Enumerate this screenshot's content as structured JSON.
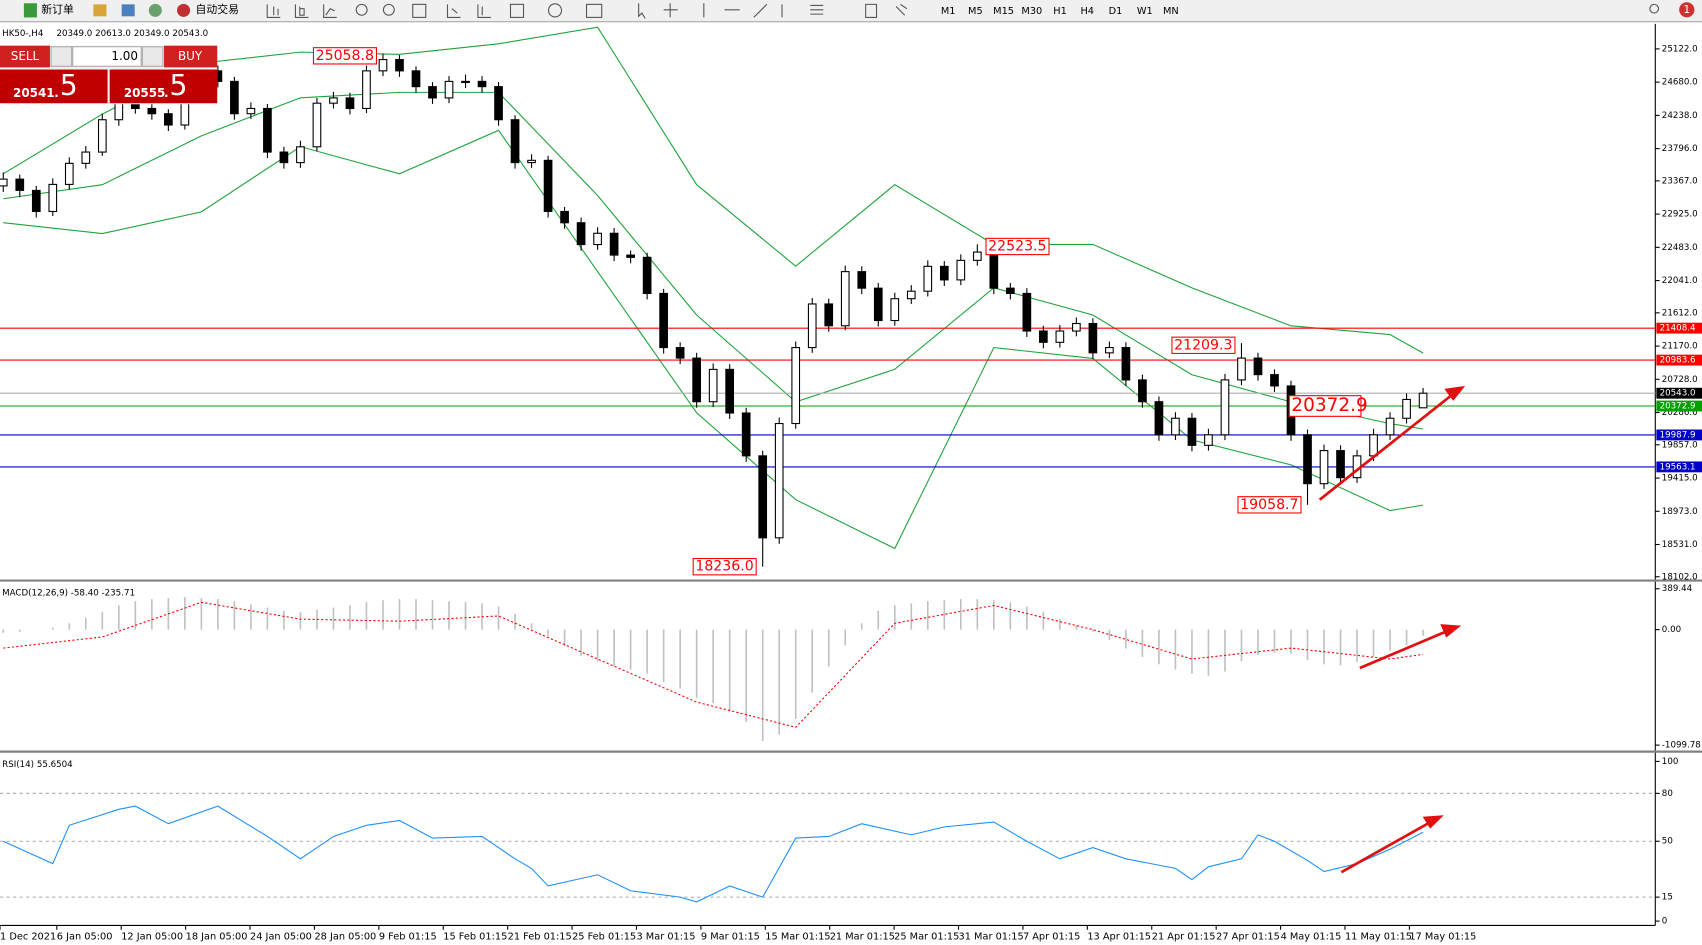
{
  "toolbar": {
    "new_order": "新订单",
    "auto_trading": "自动交易",
    "timeframes": [
      "M1",
      "M5",
      "M15",
      "M30",
      "H1",
      "H4",
      "D1",
      "W1",
      "MN"
    ],
    "alerts": "1"
  },
  "trade_panel": {
    "sell": "SELL",
    "buy": "BUY",
    "lots": "1.00",
    "sell_price": "20541",
    "sell_point": ".",
    "sell_digit": "5",
    "buy_price": "20555",
    "buy_point": ".",
    "buy_digit": "5"
  },
  "time_axis": [
    "1 Dec 2021",
    "6 Jan 05:00",
    "12 Jan 05:00",
    "18 Jan 05:00",
    "24 Jan 05:00",
    "28 Jan 05:00",
    "9 Feb 01:15",
    "15 Feb 01:15",
    "21 Feb 01:15",
    "25 Feb 01:15",
    "3 Mar 01:15",
    "9 Mar 01:15",
    "15 Mar 01:15",
    "21 Mar 01:15",
    "25 Mar 01:15",
    "31 Mar 01:15",
    "7 Apr 01:15",
    "13 Apr 01:15",
    "21 Apr 01:15",
    "27 Apr 01:15",
    "4 May 01:15",
    "11 May 01:15",
    "17 May 01:15"
  ],
  "chart_data": [
    {
      "type": "candlestick",
      "title": "HK50-,H4",
      "ohlc_label": "20349.0 20613.0 20349.0 20543.0",
      "open": [
        23300,
        23390,
        23240,
        22960,
        23320,
        23600,
        23750,
        24180,
        24400,
        24330,
        24260,
        24110,
        24690,
        24830,
        24690,
        24260,
        24330,
        23750,
        23610,
        23820,
        24400,
        24470,
        24330,
        24830,
        24980,
        24830,
        24620,
        24470,
        24690,
        24690,
        24620,
        24180,
        23610,
        23640,
        22960,
        22810,
        22520,
        22670,
        22380,
        22350,
        21870,
        21150,
        21010,
        20430,
        20860,
        20280,
        19710,
        18620,
        20140,
        21150,
        21730,
        21440,
        22160,
        21940,
        21510,
        21800,
        21900,
        22230,
        22050,
        22310,
        22420,
        21940,
        21870,
        21370,
        21220,
        21370,
        21470,
        21080,
        21150,
        20720,
        20430,
        19990,
        20210,
        19850,
        19990,
        20720,
        21010,
        20790,
        20640,
        19990,
        19340,
        19780,
        19420,
        19710,
        19990,
        20210,
        20349
      ],
      "high": [
        23480,
        23450,
        23300,
        23400,
        23680,
        23830,
        24260,
        24480,
        24470,
        24400,
        24320,
        24760,
        24900,
        24900,
        24750,
        24410,
        24390,
        23820,
        23900,
        24470,
        24550,
        24540,
        24900,
        25058.8,
        25040,
        24890,
        24680,
        24760,
        24780,
        24760,
        24680,
        24240,
        23720,
        23700,
        23020,
        22880,
        22750,
        22740,
        22440,
        22410,
        21930,
        21220,
        21080,
        20940,
        20930,
        20350,
        19780,
        20220,
        21230,
        21810,
        21800,
        22240,
        22230,
        22010,
        21880,
        21980,
        22310,
        22300,
        22390,
        22523.5,
        22490,
        22010,
        21940,
        21440,
        21450,
        21550,
        21540,
        21230,
        21220,
        20790,
        20500,
        20290,
        20280,
        20070,
        20800,
        21209.3,
        21080,
        20860,
        20710,
        20060,
        19860,
        19850,
        19790,
        20070,
        20290,
        20540,
        20613
      ],
      "low": [
        23220,
        23150,
        22880,
        22900,
        23250,
        23530,
        23700,
        24100,
        24260,
        24180,
        24030,
        24050,
        24620,
        24610,
        24180,
        24190,
        23670,
        23530,
        23540,
        23760,
        24330,
        24250,
        24270,
        24760,
        24750,
        24540,
        24390,
        24400,
        24600,
        24540,
        24100,
        23530,
        23540,
        22880,
        22730,
        22440,
        22450,
        22300,
        22270,
        21790,
        21070,
        20930,
        20350,
        20360,
        20200,
        19630,
        18236,
        18540,
        20070,
        21080,
        21360,
        21380,
        21860,
        21430,
        21440,
        21730,
        21830,
        21970,
        21980,
        22240,
        21860,
        21790,
        21290,
        21140,
        21150,
        21300,
        21000,
        21010,
        20640,
        20350,
        19910,
        19920,
        19770,
        19780,
        19920,
        20650,
        20710,
        20560,
        19910,
        19058.7,
        19270,
        19340,
        19350,
        19640,
        19920,
        20140,
        20349
      ],
      "close": [
        23390,
        23240,
        22960,
        23320,
        23600,
        23750,
        24180,
        24400,
        24330,
        24260,
        24110,
        24690,
        24830,
        24690,
        24260,
        24330,
        23750,
        23610,
        23820,
        24400,
        24470,
        24330,
        24830,
        24980,
        24830,
        24620,
        24470,
        24690,
        24690,
        24620,
        24180,
        23610,
        23640,
        22960,
        22810,
        22520,
        22670,
        22380,
        22350,
        21870,
        21150,
        21010,
        20430,
        20860,
        20280,
        19710,
        18620,
        20140,
        21150,
        21730,
        21440,
        22160,
        21940,
        21510,
        21800,
        21900,
        22230,
        22050,
        22310,
        22420,
        21940,
        21870,
        21370,
        21220,
        21370,
        21470,
        21080,
        21150,
        20720,
        20430,
        19990,
        20210,
        19850,
        19990,
        20720,
        21010,
        20790,
        20640,
        19990,
        19340,
        19780,
        19420,
        19710,
        19990,
        20210,
        20460,
        20543
      ],
      "ylim": [
        18102,
        25122
      ],
      "yticks": [
        {
          "value": 25122,
          "label": "25122.0"
        },
        {
          "value": 24680,
          "label": "24680.0"
        },
        {
          "value": 24238,
          "label": "24238.0"
        },
        {
          "value": 23796,
          "label": "23796.0"
        },
        {
          "value": 23367,
          "label": "23367.0"
        },
        {
          "value": 22925,
          "label": "22925.0"
        },
        {
          "value": 22483,
          "label": "22483.0"
        },
        {
          "value": 22041,
          "label": "22041.0"
        },
        {
          "value": 21612,
          "label": "21612.0"
        },
        {
          "value": 21170,
          "label": "21170.0"
        },
        {
          "value": 20728,
          "label": "20728.0"
        },
        {
          "value": 20286,
          "label": "20286.0"
        },
        {
          "value": 19857,
          "label": "19857.0"
        },
        {
          "value": 19415,
          "label": "19415.0"
        },
        {
          "value": 18973,
          "label": "18973.0"
        },
        {
          "value": 18531,
          "label": "18531.0"
        },
        {
          "value": 18102,
          "label": "18102.0"
        }
      ],
      "bands": {
        "color": "#1fa33a",
        "x": [
          0,
          6,
          12,
          18,
          24,
          30,
          36,
          42,
          48,
          54,
          60,
          66,
          72,
          78,
          84,
          86
        ],
        "upper": [
          23461,
          24255,
          24933,
          25079,
          25050,
          25190,
          25410,
          23316,
          22233,
          23316,
          22522,
          22522,
          21944,
          21439,
          21323,
          21078
        ],
        "middle": [
          23129,
          23316,
          23966,
          24472,
          24544,
          24544,
          23172,
          21583,
          20428,
          20861,
          21944,
          21583,
          20789,
          20428,
          20139,
          20067
        ],
        "lower": [
          22811,
          22666,
          22955,
          23822,
          23461,
          24039,
          22161,
          20283,
          19127,
          18478,
          21150,
          21006,
          19922,
          19590,
          18983,
          19055
        ]
      },
      "levels": [
        {
          "value": 21408.4,
          "label": "21408.4",
          "color": "#ff0000"
        },
        {
          "value": 20983.6,
          "label": "20983.6",
          "color": "#ff0000"
        },
        {
          "value": 20543,
          "label": "20543.0",
          "color": "#000000"
        },
        {
          "value": 20372.9,
          "label": "20372.9",
          "color": "#00a000"
        },
        {
          "value": 19987.9,
          "label": "19987.9",
          "color": "#0000c8"
        },
        {
          "value": 19563.1,
          "label": "19563.1",
          "color": "#0000c8"
        }
      ],
      "annotations": [
        {
          "value": 25058.8,
          "label": "25058.8"
        },
        {
          "value": 22523.5,
          "label": "22523.5"
        },
        {
          "value": 21209.3,
          "label": "21209.3"
        },
        {
          "value": 20372.9,
          "label": "20372.9"
        },
        {
          "value": 19058.7,
          "label": "19058.7"
        },
        {
          "value": 18236,
          "label": "18236.0"
        }
      ]
    },
    {
      "type": "macd",
      "title": "MACD(12,26,9) -58.40 -235.71",
      "color": "#c0c0c0",
      "histogram": [
        -30,
        -20,
        0,
        20,
        60,
        110,
        170,
        230,
        270,
        290,
        300,
        310,
        300,
        290,
        270,
        240,
        210,
        180,
        170,
        190,
        210,
        230,
        260,
        280,
        290,
        290,
        280,
        270,
        260,
        250,
        220,
        150,
        60,
        -60,
        -160,
        -250,
        -300,
        -350,
        -380,
        -420,
        -500,
        -560,
        -650,
        -700,
        -780,
        -880,
        -1060,
        -1000,
        -850,
        -600,
        -350,
        -150,
        60,
        180,
        230,
        250,
        270,
        280,
        290,
        290,
        280,
        260,
        220,
        170,
        100,
        40,
        -20,
        -100,
        -180,
        -260,
        -330,
        -380,
        -420,
        -440,
        -400,
        -300,
        -240,
        -220,
        -230,
        -290,
        -330,
        -340,
        -310,
        -260,
        -200,
        -150,
        -58.4
      ],
      "signal": {
        "color": "#ff0000",
        "x": [
          0,
          6,
          12,
          18,
          24,
          30,
          36,
          42,
          48,
          54,
          60,
          66,
          72,
          78,
          84,
          86
        ],
        "values": [
          -176,
          -70,
          260,
          100,
          80,
          130,
          -280,
          -690,
          -930,
          60,
          230,
          0,
          -280,
          -176,
          -280,
          -235.71
        ]
      },
      "ylim": [
        -1099.78,
        389.44
      ],
      "yticks": [
        389.44,
        {
          "value": 0,
          "label": "0.00"
        },
        -1099.78
      ]
    },
    {
      "type": "line",
      "title": "RSI(14) 55.6504",
      "color": "#1e90ff",
      "x": [
        0,
        3,
        4,
        7,
        8,
        10,
        13,
        16,
        18,
        20,
        22,
        24,
        26,
        29,
        31,
        32,
        33,
        36,
        38,
        41,
        42,
        44,
        46,
        48,
        50,
        52,
        55,
        57,
        60,
        62,
        64,
        66,
        68,
        71,
        72,
        73,
        75,
        76,
        77,
        79,
        80,
        82,
        84,
        86
      ],
      "values": [
        50,
        36,
        60,
        70,
        72,
        61,
        72,
        53,
        39,
        53,
        60,
        63,
        52,
        53,
        39,
        33,
        22,
        29,
        19,
        15,
        12,
        22,
        15,
        52,
        53,
        61,
        54,
        59,
        62,
        50,
        39,
        46,
        39,
        33,
        26,
        34,
        39,
        54,
        50,
        38,
        31,
        36,
        45,
        55.6504
      ],
      "ylim": [
        0,
        100
      ],
      "yticks": [
        100,
        80,
        50,
        15,
        0
      ]
    }
  ]
}
